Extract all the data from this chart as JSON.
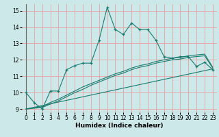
{
  "title": "",
  "xlabel": "Humidex (Indice chaleur)",
  "ylabel": "",
  "bg_color": "#cce8e8",
  "grid_color": "#e8a0a0",
  "line_color": "#1a7a6e",
  "xlim": [
    -0.5,
    23.5
  ],
  "ylim": [
    8.8,
    15.4
  ],
  "xticks": [
    0,
    1,
    2,
    3,
    4,
    5,
    6,
    7,
    8,
    9,
    10,
    11,
    12,
    13,
    14,
    15,
    16,
    17,
    18,
    19,
    20,
    21,
    22,
    23
  ],
  "yticks": [
    9,
    10,
    11,
    12,
    13,
    14,
    15
  ],
  "main_line_x": [
    0,
    1,
    2,
    3,
    4,
    5,
    6,
    7,
    8,
    9,
    10,
    11,
    12,
    13,
    14,
    15,
    16,
    17,
    18,
    19,
    20,
    21,
    22,
    23
  ],
  "main_line_y": [
    10.0,
    9.4,
    9.0,
    10.1,
    10.1,
    11.4,
    11.65,
    11.8,
    11.8,
    13.2,
    15.2,
    13.85,
    13.55,
    14.25,
    13.85,
    13.85,
    13.2,
    12.2,
    12.1,
    12.2,
    12.2,
    11.6,
    11.85,
    11.4
  ],
  "line2_x": [
    0,
    1,
    2,
    3,
    4,
    5,
    6,
    7,
    8,
    9,
    10,
    11,
    12,
    13,
    14,
    15,
    16,
    17,
    18,
    19,
    20,
    21,
    22,
    23
  ],
  "line2_y": [
    9.0,
    9.05,
    9.1,
    9.3,
    9.5,
    9.75,
    10.0,
    10.2,
    10.45,
    10.65,
    10.85,
    11.05,
    11.2,
    11.4,
    11.55,
    11.65,
    11.8,
    11.9,
    12.0,
    12.05,
    12.15,
    12.2,
    12.25,
    11.5
  ],
  "line3_x": [
    0,
    1,
    2,
    3,
    4,
    5,
    6,
    7,
    8,
    9,
    10,
    11,
    12,
    13,
    14,
    15,
    16,
    17,
    18,
    19,
    20,
    21,
    22,
    23
  ],
  "line3_y": [
    9.0,
    9.1,
    9.15,
    9.4,
    9.6,
    9.85,
    10.1,
    10.35,
    10.55,
    10.75,
    10.95,
    11.15,
    11.3,
    11.5,
    11.65,
    11.75,
    11.9,
    12.0,
    12.1,
    12.15,
    12.25,
    12.3,
    12.35,
    11.55
  ],
  "line4_x": [
    0,
    23
  ],
  "line4_y": [
    9.0,
    11.45
  ]
}
